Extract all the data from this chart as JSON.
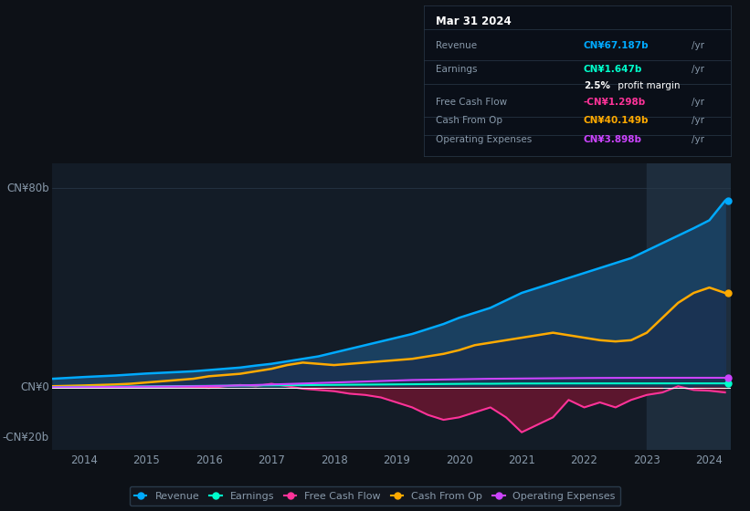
{
  "bg_color": "#0d1117",
  "chart_bg": "#131c27",
  "highlight_bg": "#1e2d3d",
  "zero_line_color": "#ffffff",
  "grid_color": "#2a3a4a",
  "label_color": "#8899aa",
  "x_years": [
    2013.5,
    2014.0,
    2014.25,
    2014.5,
    2014.75,
    2015.0,
    2015.25,
    2015.5,
    2015.75,
    2016.0,
    2016.25,
    2016.5,
    2016.75,
    2017.0,
    2017.25,
    2017.5,
    2017.75,
    2018.0,
    2018.25,
    2018.5,
    2018.75,
    2019.0,
    2019.25,
    2019.5,
    2019.75,
    2020.0,
    2020.25,
    2020.5,
    2020.75,
    2021.0,
    2021.25,
    2021.5,
    2021.75,
    2022.0,
    2022.25,
    2022.5,
    2022.75,
    2023.0,
    2023.25,
    2023.5,
    2023.75,
    2024.0,
    2024.25
  ],
  "revenue": [
    3.5,
    4.2,
    4.5,
    4.8,
    5.2,
    5.6,
    5.9,
    6.2,
    6.5,
    7.0,
    7.5,
    8.0,
    8.8,
    9.5,
    10.5,
    11.5,
    12.5,
    14.0,
    15.5,
    17.0,
    18.5,
    20.0,
    21.5,
    23.5,
    25.5,
    28.0,
    30.0,
    32.0,
    35.0,
    38.0,
    40.0,
    42.0,
    44.0,
    46.0,
    48.0,
    50.0,
    52.0,
    55.0,
    58.0,
    61.0,
    64.0,
    67.187,
    75.0
  ],
  "earnings": [
    0.2,
    0.3,
    0.3,
    0.35,
    0.4,
    0.45,
    0.5,
    0.55,
    0.6,
    0.65,
    0.7,
    0.75,
    0.8,
    0.85,
    0.9,
    0.95,
    1.0,
    1.05,
    1.1,
    1.15,
    1.2,
    1.25,
    1.3,
    1.35,
    1.4,
    1.45,
    1.5,
    1.5,
    1.55,
    1.6,
    1.6,
    1.62,
    1.63,
    1.63,
    1.64,
    1.64,
    1.64,
    1.64,
    1.645,
    1.645,
    1.647,
    1.647,
    1.647
  ],
  "free_cash_flow": [
    0.1,
    0.1,
    0.05,
    0.0,
    -0.1,
    0.0,
    0.2,
    0.3,
    0.1,
    -0.2,
    0.5,
    1.0,
    0.5,
    1.5,
    0.5,
    -0.5,
    -1.0,
    -1.5,
    -2.5,
    -3.0,
    -4.0,
    -6.0,
    -8.0,
    -11.0,
    -13.0,
    -12.0,
    -10.0,
    -8.0,
    -12.0,
    -18.0,
    -15.0,
    -12.0,
    -5.0,
    -8.0,
    -6.0,
    -8.0,
    -5.0,
    -3.0,
    -2.0,
    0.5,
    -1.0,
    -1.298,
    -2.0
  ],
  "cash_from_op": [
    0.5,
    0.8,
    1.0,
    1.2,
    1.5,
    2.0,
    2.5,
    3.0,
    3.5,
    4.5,
    5.0,
    5.5,
    6.5,
    7.5,
    9.0,
    10.0,
    9.5,
    9.0,
    9.5,
    10.0,
    10.5,
    11.0,
    11.5,
    12.5,
    13.5,
    15.0,
    17.0,
    18.0,
    19.0,
    20.0,
    21.0,
    22.0,
    21.0,
    20.0,
    19.0,
    18.5,
    19.0,
    22.0,
    28.0,
    34.0,
    38.0,
    40.149,
    38.0
  ],
  "op_expenses": [
    0.1,
    0.15,
    0.2,
    0.25,
    0.3,
    0.35,
    0.4,
    0.45,
    0.5,
    0.6,
    0.7,
    0.8,
    1.0,
    1.2,
    1.4,
    1.6,
    1.8,
    2.0,
    2.2,
    2.4,
    2.6,
    2.8,
    3.0,
    3.1,
    3.2,
    3.3,
    3.4,
    3.5,
    3.55,
    3.6,
    3.65,
    3.7,
    3.75,
    3.8,
    3.83,
    3.85,
    3.87,
    3.88,
    3.89,
    3.895,
    3.898,
    3.898,
    3.898
  ],
  "revenue_color": "#00aaff",
  "earnings_color": "#00ffcc",
  "fcf_color": "#ff3399",
  "cashop_color": "#ffaa00",
  "opex_color": "#cc44ff",
  "revenue_fill": "#1a4060",
  "cashop_fill": "#1a3050",
  "fcf_neg_fill": "#6a1530",
  "highlight_start_year": 2023.0,
  "ylim_min": -25,
  "ylim_max": 90,
  "xticks": [
    2014,
    2015,
    2016,
    2017,
    2018,
    2019,
    2020,
    2021,
    2022,
    2023,
    2024
  ]
}
